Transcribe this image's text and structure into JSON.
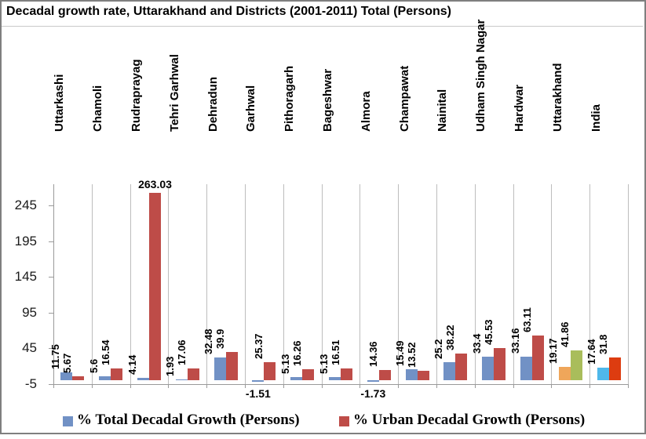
{
  "title": "Decadal growth rate, Uttarakhand and Districts (2001-2011) Total (Persons)",
  "legend": {
    "items": [
      {
        "label": "% Total Decadal Growth (Persons)",
        "color": "#7191C5"
      },
      {
        "label": "% Urban Decadal Growth (Persons)",
        "color": "#BE4C48"
      }
    ]
  },
  "chart_data": {
    "type": "bar",
    "title": "Decadal growth rate, Uttarakhand and Districts (2001-2011) Total (Persons)",
    "categories": [
      "Uttarkashi",
      "Chamoli",
      "Rudraprayag",
      "Tehri Garhwal",
      "Dehradun",
      "Garhwal",
      "Pithoragarh",
      "Bageshwar",
      "Almora",
      "Champawat",
      "Nainital",
      "Udham Singh Nagar",
      "Hardwar",
      "Uttarakhand",
      "India"
    ],
    "series": [
      {
        "name": "% Total Decadal Growth (Persons)",
        "color": "#7191C5",
        "values": [
          11.75,
          5.6,
          4.14,
          1.93,
          32.48,
          -1.51,
          5.13,
          5.13,
          -1.73,
          15.49,
          25.2,
          33.4,
          33.16,
          19.17,
          17.64
        ]
      },
      {
        "name": "% Urban Decadal Growth (Persons)",
        "color": "#BE4C48",
        "values": [
          5.67,
          16.54,
          263.03,
          17.06,
          39.9,
          25.37,
          16.26,
          16.51,
          14.36,
          13.52,
          38.22,
          45.53,
          63.11,
          41.86,
          31.8
        ]
      }
    ],
    "category_color_overrides": {
      "Uttarakhand": [
        "#EFA65A",
        "#A9BD5B"
      ],
      "India": [
        "#4FB8EA",
        "#DD3C10"
      ]
    },
    "horizontal_label_points": [
      {
        "category": "Rudraprayag",
        "series": 1
      },
      {
        "category": "Garhwal",
        "series": 0
      },
      {
        "category": "Almora",
        "series": 0
      }
    ],
    "y_axis": {
      "ticks": [
        -5,
        45,
        95,
        145,
        195,
        245
      ],
      "min": -5,
      "max": 275
    },
    "grid": "vertical-category-separators",
    "legend_position": "bottom"
  }
}
